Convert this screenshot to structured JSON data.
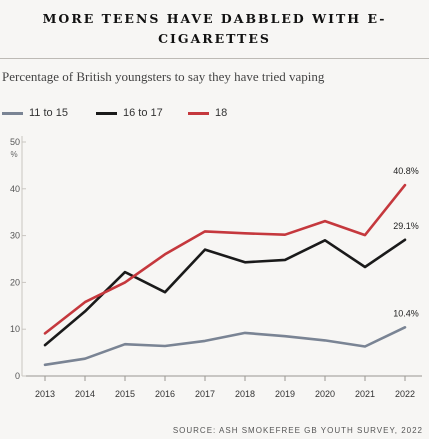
{
  "chart_data": {
    "type": "line",
    "title": "MORE TEENS HAVE DABBLED WITH E-CIGARETTES",
    "subtitle": "Percentage of British youngsters to say they have tried vaping",
    "y_unit_label": "%",
    "x": [
      "2013",
      "2014",
      "2015",
      "2016",
      "2017",
      "2018",
      "2019",
      "2020",
      "2021",
      "2022"
    ],
    "yticks": [
      "0",
      "10",
      "20",
      "30",
      "40",
      "50"
    ],
    "ylim": [
      0,
      50
    ],
    "grid": false,
    "legend_placement": "top-left",
    "series": [
      {
        "name": "11 to 15",
        "color": "#7a8494",
        "values": [
          2.4,
          3.7,
          6.8,
          6.4,
          7.5,
          9.2,
          8.5,
          7.6,
          6.3,
          10.4
        ]
      },
      {
        "name": "16 to 17",
        "color": "#1a1a1a",
        "values": [
          6.6,
          13.8,
          22.2,
          17.9,
          27.0,
          24.3,
          24.8,
          29.0,
          23.3,
          29.1
        ]
      },
      {
        "name": "18",
        "color": "#c5383d",
        "values": [
          9.1,
          15.8,
          20.0,
          26.0,
          30.9,
          30.5,
          30.2,
          33.1,
          30.1,
          40.8
        ]
      }
    ],
    "end_labels": [
      "10.4%",
      "29.1%",
      "40.8%"
    ],
    "source": "SOURCE: ASH SMOKEFREE GB YOUTH SURVEY, 2022"
  }
}
